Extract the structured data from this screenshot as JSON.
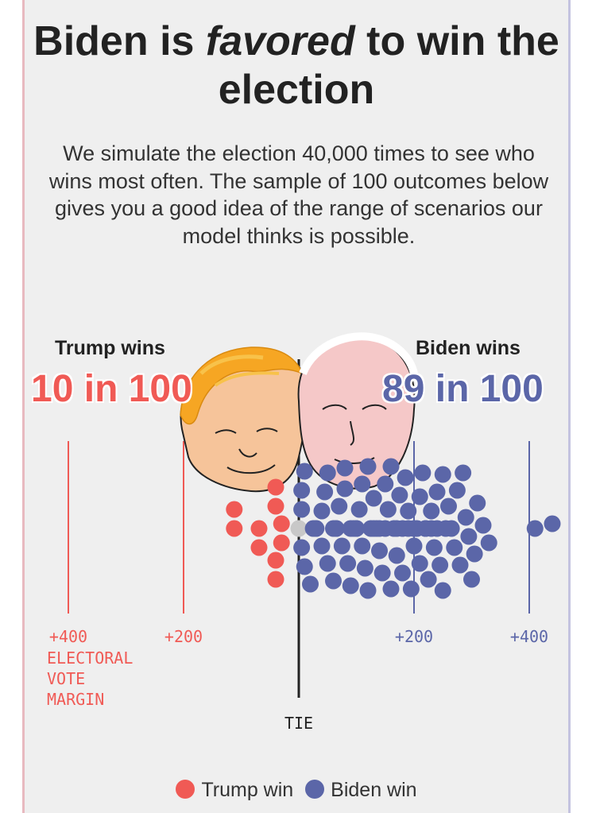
{
  "title": {
    "prefix": "Biden is ",
    "emphasis": "favored",
    "suffix": " to win the election"
  },
  "subtitle": "We simulate the election 40,000 times to see who wins most often. The sample of 100 outcomes below gives you a good idea of the range of scenarios our model thinks is possible.",
  "trump": {
    "label": "Trump wins",
    "odds": "10 in 100",
    "color": "#f05a55"
  },
  "biden": {
    "label": "Biden wins",
    "odds": "89 in 100",
    "color": "#5b66a8"
  },
  "tie_color": "#c8c8c8",
  "axis": {
    "ticks": [
      {
        "value": -400,
        "label": "+400",
        "side": "trump"
      },
      {
        "value": -200,
        "label": "+200",
        "side": "trump"
      },
      {
        "value": 200,
        "label": "+200",
        "side": "biden"
      },
      {
        "value": 400,
        "label": "+400",
        "side": "biden"
      }
    ],
    "axis_title_lines": [
      "ELECTORAL",
      "VOTE",
      "MARGIN"
    ],
    "tie_label": "TIE"
  },
  "legend": [
    {
      "label": "Trump win",
      "color": "#f05a55"
    },
    {
      "label": "Biden win",
      "color": "#5b66a8"
    }
  ],
  "chart_data": {
    "type": "scatter",
    "title": "Biden is favored to win the election",
    "xlabel": "ELECTORAL VOTE MARGIN",
    "x_range": [
      -400,
      400
    ],
    "counts": {
      "trump": 10,
      "tie": 1,
      "biden": 89
    },
    "series": [
      {
        "name": "Trump win",
        "x": [
          -112,
          -112,
          -69,
          -69,
          -40,
          -40,
          -40,
          -40,
          -30,
          -30
        ]
      },
      {
        "name": "Tie",
        "x": [
          0
        ]
      },
      {
        "name": "Biden win",
        "x": [
          5,
          5,
          5,
          10,
          10,
          20,
          25,
          30,
          30,
          40,
          40,
          45,
          50,
          50,
          60,
          60,
          65,
          65,
          70,
          75,
          80,
          80,
          85,
          90,
          90,
          95,
          100,
          100,
          105,
          110,
          110,
          115,
          120,
          120,
          125,
          130,
          130,
          135,
          140,
          140,
          145,
          150,
          150,
          155,
          160,
          160,
          165,
          170,
          170,
          175,
          180,
          180,
          185,
          190,
          190,
          195,
          200,
          200,
          205,
          210,
          210,
          215,
          220,
          220,
          225,
          230,
          230,
          235,
          240,
          240,
          245,
          250,
          250,
          255,
          260,
          265,
          270,
          275,
          280,
          285,
          290,
          295,
          300,
          305,
          310,
          320,
          330,
          410,
          440
        ]
      }
    ]
  }
}
